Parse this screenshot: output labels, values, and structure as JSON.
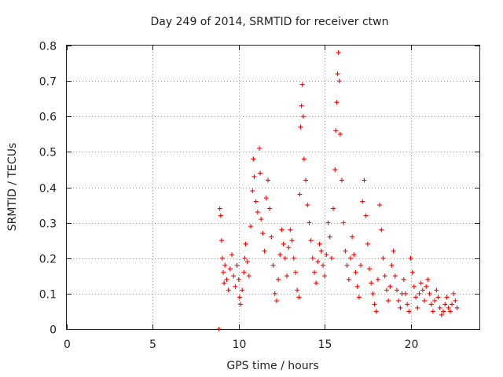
{
  "chart_data": {
    "type": "scatter",
    "title": "Day 249 of 2014, SRMTID for receiver ctwn",
    "xlabel": "GPS time / hours",
    "ylabel": "SRMTID / TECUs",
    "xlim": [
      0,
      24
    ],
    "ylim": [
      0,
      0.8
    ],
    "xticks": [
      0,
      5,
      10,
      15,
      20
    ],
    "yticks": [
      0,
      0.1,
      0.2,
      0.3,
      0.4,
      0.5,
      0.6,
      0.7,
      0.8
    ],
    "xtick_labels": [
      "0",
      "5",
      "10",
      "15",
      "20"
    ],
    "ytick_labels": [
      "0",
      "0.1",
      "0.2",
      "0.3",
      "0.4",
      "0.5",
      "0.6",
      "0.7",
      "0.8"
    ],
    "grid": true,
    "marker": "plus",
    "color": "#ff0000",
    "series": [
      {
        "name": "SRMTID",
        "points": [
          [
            8.85,
            0.0
          ],
          [
            8.9,
            0.34
          ],
          [
            8.95,
            0.32
          ],
          [
            9.0,
            0.25
          ],
          [
            9.05,
            0.2
          ],
          [
            9.1,
            0.16
          ],
          [
            9.15,
            0.13
          ],
          [
            9.2,
            0.18
          ],
          [
            9.3,
            0.14
          ],
          [
            9.4,
            0.11
          ],
          [
            9.5,
            0.17
          ],
          [
            9.6,
            0.21
          ],
          [
            9.7,
            0.15
          ],
          [
            9.8,
            0.12
          ],
          [
            9.9,
            0.18
          ],
          [
            10.0,
            0.14
          ],
          [
            10.05,
            0.09
          ],
          [
            10.1,
            0.07
          ],
          [
            10.2,
            0.11
          ],
          [
            10.3,
            0.16
          ],
          [
            10.35,
            0.2
          ],
          [
            10.4,
            0.24
          ],
          [
            10.5,
            0.19
          ],
          [
            10.6,
            0.15
          ],
          [
            10.7,
            0.29
          ],
          [
            10.8,
            0.39
          ],
          [
            10.85,
            0.48
          ],
          [
            10.9,
            0.43
          ],
          [
            11.0,
            0.36
          ],
          [
            11.1,
            0.33
          ],
          [
            11.2,
            0.51
          ],
          [
            11.25,
            0.44
          ],
          [
            11.3,
            0.31
          ],
          [
            11.4,
            0.27
          ],
          [
            11.5,
            0.22
          ],
          [
            11.6,
            0.37
          ],
          [
            11.7,
            0.42
          ],
          [
            11.8,
            0.34
          ],
          [
            11.9,
            0.26
          ],
          [
            12.0,
            0.18
          ],
          [
            12.1,
            0.1
          ],
          [
            12.2,
            0.08
          ],
          [
            12.3,
            0.14
          ],
          [
            12.4,
            0.21
          ],
          [
            12.5,
            0.28
          ],
          [
            12.6,
            0.24
          ],
          [
            12.7,
            0.2
          ],
          [
            12.8,
            0.15
          ],
          [
            12.9,
            0.23
          ],
          [
            13.0,
            0.28
          ],
          [
            13.1,
            0.25
          ],
          [
            13.2,
            0.2
          ],
          [
            13.3,
            0.16
          ],
          [
            13.4,
            0.11
          ],
          [
            13.5,
            0.09
          ],
          [
            13.55,
            0.38
          ],
          [
            13.6,
            0.57
          ],
          [
            13.65,
            0.63
          ],
          [
            13.7,
            0.69
          ],
          [
            13.75,
            0.6
          ],
          [
            13.8,
            0.48
          ],
          [
            13.9,
            0.42
          ],
          [
            14.0,
            0.35
          ],
          [
            14.1,
            0.3
          ],
          [
            14.2,
            0.25
          ],
          [
            14.3,
            0.2
          ],
          [
            14.4,
            0.16
          ],
          [
            14.5,
            0.13
          ],
          [
            14.6,
            0.19
          ],
          [
            14.7,
            0.24
          ],
          [
            14.8,
            0.22
          ],
          [
            14.9,
            0.18
          ],
          [
            15.0,
            0.15
          ],
          [
            15.1,
            0.21
          ],
          [
            15.2,
            0.3
          ],
          [
            15.3,
            0.26
          ],
          [
            15.4,
            0.2
          ],
          [
            15.5,
            0.34
          ],
          [
            15.6,
            0.45
          ],
          [
            15.65,
            0.56
          ],
          [
            15.7,
            0.64
          ],
          [
            15.75,
            0.72
          ],
          [
            15.8,
            0.78
          ],
          [
            15.85,
            0.7
          ],
          [
            15.9,
            0.55
          ],
          [
            16.0,
            0.42
          ],
          [
            16.1,
            0.3
          ],
          [
            16.2,
            0.22
          ],
          [
            16.3,
            0.18
          ],
          [
            16.4,
            0.14
          ],
          [
            16.5,
            0.2
          ],
          [
            16.6,
            0.26
          ],
          [
            16.7,
            0.21
          ],
          [
            16.8,
            0.16
          ],
          [
            16.9,
            0.12
          ],
          [
            17.0,
            0.09
          ],
          [
            17.1,
            0.18
          ],
          [
            17.2,
            0.36
          ],
          [
            17.3,
            0.42
          ],
          [
            17.4,
            0.32
          ],
          [
            17.5,
            0.24
          ],
          [
            17.6,
            0.17
          ],
          [
            17.7,
            0.13
          ],
          [
            17.8,
            0.1
          ],
          [
            17.9,
            0.07
          ],
          [
            18.0,
            0.05
          ],
          [
            18.1,
            0.14
          ],
          [
            18.2,
            0.35
          ],
          [
            18.3,
            0.28
          ],
          [
            18.4,
            0.2
          ],
          [
            18.5,
            0.15
          ],
          [
            18.6,
            0.11
          ],
          [
            18.7,
            0.08
          ],
          [
            18.8,
            0.12
          ],
          [
            18.9,
            0.18
          ],
          [
            19.0,
            0.22
          ],
          [
            19.1,
            0.15
          ],
          [
            19.2,
            0.11
          ],
          [
            19.3,
            0.08
          ],
          [
            19.4,
            0.06
          ],
          [
            19.5,
            0.1
          ],
          [
            19.6,
            0.14
          ],
          [
            19.7,
            0.1
          ],
          [
            19.8,
            0.07
          ],
          [
            19.9,
            0.05
          ],
          [
            20.0,
            0.2
          ],
          [
            20.1,
            0.16
          ],
          [
            20.2,
            0.12
          ],
          [
            20.3,
            0.09
          ],
          [
            20.4,
            0.06
          ],
          [
            20.5,
            0.1
          ],
          [
            20.6,
            0.13
          ],
          [
            20.7,
            0.11
          ],
          [
            20.8,
            0.08
          ],
          [
            20.9,
            0.12
          ],
          [
            21.0,
            0.14
          ],
          [
            21.1,
            0.1
          ],
          [
            21.2,
            0.07
          ],
          [
            21.3,
            0.05
          ],
          [
            21.4,
            0.08
          ],
          [
            21.5,
            0.11
          ],
          [
            21.6,
            0.09
          ],
          [
            21.7,
            0.06
          ],
          [
            21.8,
            0.04
          ],
          [
            21.9,
            0.05
          ],
          [
            22.0,
            0.07
          ],
          [
            22.1,
            0.09
          ],
          [
            22.2,
            0.06
          ],
          [
            22.3,
            0.05
          ],
          [
            22.4,
            0.07
          ],
          [
            22.5,
            0.1
          ],
          [
            22.6,
            0.08
          ],
          [
            22.7,
            0.06
          ]
        ]
      }
    ]
  }
}
